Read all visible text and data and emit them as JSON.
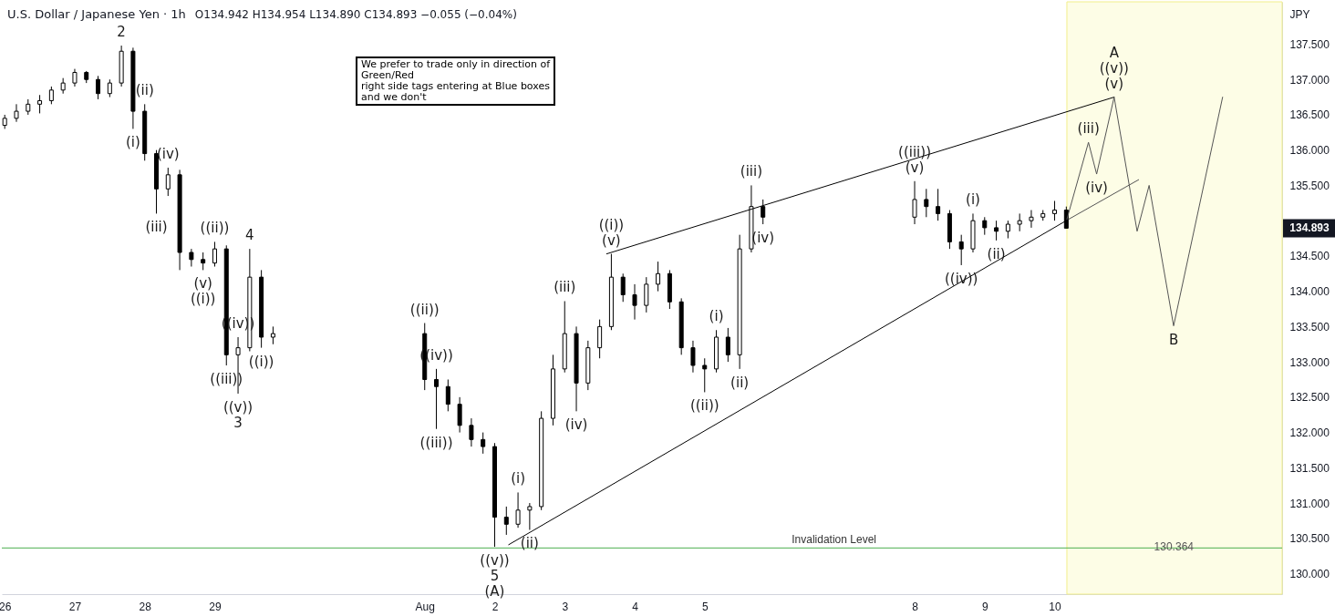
{
  "chart_data": {
    "type": "candlestick",
    "title": "U.S. Dollar / Japanese Yen · 1h",
    "subtitle": "O134.942 H134.954 L134.890 C134.893 −0.055 (−0.04%)",
    "ylabel": "JPY",
    "x": [
      "--07-26T00:00",
      "--07-26T04:00",
      "--07-26T08:00",
      "--07-26T12:00",
      "--07-26T16:00",
      "--07-26T20:00",
      "--07-27T00:00",
      "--07-27T04:00",
      "--07-27T08:00",
      "--07-27T12:00",
      "--07-27T16:00",
      "--07-27T20:00",
      "--07-28T00:00",
      "--07-28T04:00",
      "--07-28T08:00",
      "--07-28T12:00",
      "--07-28T16:00",
      "--07-28T20:00",
      "--07-29T00:00",
      "--07-29T04:00",
      "--07-29T08:00",
      "--07-29T12:00",
      "--07-29T16:00",
      "--07-29T20:00",
      "--08-01T00:00",
      "--08-01T04:00",
      "--08-01T08:00",
      "--08-01T12:00",
      "--08-01T16:00",
      "--08-01T20:00",
      "--08-02T00:00",
      "--08-02T04:00",
      "--08-02T08:00",
      "--08-02T12:00",
      "--08-02T16:00",
      "--08-02T20:00",
      "--08-03T00:00",
      "--08-03T04:00",
      "--08-03T08:00",
      "--08-03T12:00",
      "--08-03T16:00",
      "--08-03T20:00",
      "--08-04T00:00",
      "--08-04T04:00",
      "--08-04T08:00",
      "--08-04T12:00",
      "--08-04T16:00",
      "--08-04T20:00",
      "--08-05T00:00",
      "--08-05T04:00",
      "--08-05T08:00",
      "--08-05T12:00",
      "--08-05T16:00",
      "--08-05T20:00",
      "--08-08T00:00",
      "--08-08T04:00",
      "--08-08T08:00",
      "--08-08T12:00",
      "--08-08T16:00",
      "--08-08T20:00",
      "--08-09T00:00",
      "--08-09T04:00",
      "--08-09T08:00",
      "--08-09T12:00",
      "--08-09T16:00",
      "--08-09T20:00",
      "--08-10T00:00",
      "--08-10T04:00"
    ],
    "ohlc": [
      [
        136.35,
        136.5,
        136.3,
        136.45
      ],
      [
        136.45,
        136.65,
        136.4,
        136.55
      ],
      [
        136.55,
        136.72,
        136.5,
        136.65
      ],
      [
        136.65,
        136.78,
        136.52,
        136.7
      ],
      [
        136.7,
        136.9,
        136.65,
        136.85
      ],
      [
        136.85,
        137.02,
        136.8,
        136.95
      ],
      [
        136.95,
        137.15,
        136.9,
        137.1
      ],
      [
        137.1,
        137.12,
        136.95,
        137.0
      ],
      [
        137.0,
        137.05,
        136.72,
        136.8
      ],
      [
        136.8,
        137.0,
        136.75,
        136.95
      ],
      [
        136.95,
        137.48,
        136.9,
        137.4
      ],
      [
        137.4,
        137.45,
        136.3,
        136.55
      ],
      [
        136.55,
        136.65,
        135.85,
        135.95
      ],
      [
        135.95,
        136.0,
        135.1,
        135.45
      ],
      [
        135.45,
        135.75,
        135.35,
        135.65
      ],
      [
        135.65,
        135.72,
        134.3,
        134.55
      ],
      [
        134.55,
        134.6,
        134.35,
        134.45
      ],
      [
        134.45,
        134.55,
        134.3,
        134.4
      ],
      [
        134.4,
        134.7,
        134.35,
        134.6
      ],
      [
        134.6,
        134.65,
        132.95,
        133.1
      ],
      [
        133.1,
        133.35,
        132.55,
        133.2
      ],
      [
        133.2,
        134.6,
        133.15,
        134.2
      ],
      [
        134.2,
        134.3,
        133.2,
        133.35
      ],
      [
        133.35,
        133.5,
        133.25,
        133.4
      ],
      [
        133.4,
        133.55,
        132.6,
        132.75
      ],
      [
        132.75,
        132.9,
        132.05,
        132.65
      ],
      [
        132.65,
        132.75,
        132.3,
        132.4
      ],
      [
        132.4,
        132.5,
        132.0,
        132.1
      ],
      [
        132.1,
        132.2,
        131.8,
        131.9
      ],
      [
        131.9,
        132.0,
        131.7,
        131.8
      ],
      [
        131.8,
        131.85,
        130.38,
        130.8
      ],
      [
        130.8,
        130.95,
        130.55,
        130.7
      ],
      [
        130.7,
        131.15,
        130.65,
        130.9
      ],
      [
        130.9,
        131.0,
        130.62,
        130.95
      ],
      [
        130.95,
        132.3,
        130.9,
        132.2
      ],
      [
        132.2,
        133.1,
        132.1,
        132.9
      ],
      [
        132.9,
        133.86,
        132.85,
        133.4
      ],
      [
        133.4,
        133.5,
        132.3,
        132.7
      ],
      [
        132.7,
        133.3,
        132.6,
        133.2
      ],
      [
        133.2,
        133.6,
        133.05,
        133.5
      ],
      [
        133.5,
        134.53,
        133.45,
        134.2
      ],
      [
        134.2,
        134.25,
        133.85,
        133.95
      ],
      [
        133.95,
        134.1,
        133.6,
        133.8
      ],
      [
        133.8,
        134.2,
        133.7,
        134.1
      ],
      [
        134.1,
        134.42,
        134.0,
        134.25
      ],
      [
        134.25,
        134.3,
        133.75,
        133.85
      ],
      [
        133.85,
        133.9,
        133.1,
        133.2
      ],
      [
        133.2,
        133.3,
        132.85,
        132.95
      ],
      [
        132.95,
        133.05,
        132.57,
        132.9
      ],
      [
        132.9,
        133.45,
        132.85,
        133.35
      ],
      [
        133.35,
        133.48,
        133.0,
        133.1
      ],
      [
        133.1,
        134.8,
        132.9,
        134.6
      ],
      [
        134.6,
        135.5,
        134.55,
        135.2
      ],
      [
        135.2,
        135.3,
        134.95,
        135.05
      ],
      [
        135.05,
        135.56,
        134.95,
        135.3
      ],
      [
        135.3,
        135.45,
        135.05,
        135.2
      ],
      [
        135.2,
        135.45,
        135.0,
        135.1
      ],
      [
        135.1,
        135.15,
        134.6,
        134.7
      ],
      [
        134.7,
        134.8,
        134.37,
        134.6
      ],
      [
        134.6,
        135.1,
        134.55,
        135.0
      ],
      [
        135.0,
        135.05,
        134.8,
        134.9
      ],
      [
        134.9,
        135.0,
        134.72,
        134.85
      ],
      [
        134.85,
        135.0,
        134.75,
        134.95
      ],
      [
        134.95,
        135.1,
        134.85,
        135.0
      ],
      [
        135.0,
        135.15,
        134.9,
        135.05
      ],
      [
        135.05,
        135.15,
        135.0,
        135.1
      ],
      [
        135.1,
        135.28,
        135.0,
        135.15
      ],
      [
        135.15,
        135.2,
        134.89,
        134.893
      ]
    ],
    "series": [
      {
        "type": "line",
        "color": "#000000",
        "x": [
          "--08-03T14:24",
          "--08-10T20:24"
        ],
        "values": [
          134.53,
          136.75
        ]
      },
      {
        "type": "line",
        "color": "#000000",
        "x": [
          "--08-02T04:48",
          "--08-10T04:48"
        ],
        "values": [
          130.41,
          135.02
        ]
      },
      {
        "type": "line",
        "color": "#555555",
        "x": [
          "--08-10T04:48",
          "--08-11T04:48"
        ],
        "values": [
          135.02,
          135.58
        ]
      },
      {
        "type": "line",
        "color": "#555555",
        "x": [
          "--08-10T04:12",
          "--08-10T11:36",
          "--08-10T14:24",
          "--08-10T20:24",
          "--08-11T04:17",
          "--08-11T08:24",
          "--08-11T16:48",
          "--08-12T09:36"
        ],
        "values": [
          135.02,
          136.11,
          135.66,
          136.75,
          134.85,
          135.5,
          133.51,
          136.75
        ]
      }
    ],
    "xlim": [
      "--07-25T23:00",
      "--08-13T06:00"
    ],
    "xticks": [
      {
        "value": "--07-26",
        "label": "26"
      },
      {
        "value": "--07-27",
        "label": "27"
      },
      {
        "value": "--07-28",
        "label": "28"
      },
      {
        "value": "--07-29",
        "label": "29"
      },
      {
        "value": "--08-01",
        "label": "Aug"
      },
      {
        "value": "--08-02",
        "label": "2"
      },
      {
        "value": "--08-03",
        "label": "3"
      },
      {
        "value": "--08-04",
        "label": "4"
      },
      {
        "value": "--08-05",
        "label": "5"
      },
      {
        "value": "--08-08",
        "label": "8"
      },
      {
        "value": "--08-09",
        "label": "9"
      },
      {
        "value": "--08-10",
        "label": "10"
      }
    ],
    "ylim": [
      129.71,
      138.1
    ],
    "yticks": [
      {
        "value": 130,
        "label": "130.000"
      },
      {
        "value": 130.5,
        "label": "130.500"
      },
      {
        "value": 131,
        "label": "131.000"
      },
      {
        "value": 131.5,
        "label": "131.500"
      },
      {
        "value": 132,
        "label": "132.000"
      },
      {
        "value": 132.5,
        "label": "132.500"
      },
      {
        "value": 133,
        "label": "133.000"
      },
      {
        "value": 133.5,
        "label": "133.500"
      },
      {
        "value": 134,
        "label": "134.000"
      },
      {
        "value": 134.5,
        "label": "134.500"
      },
      {
        "value": 135.5,
        "label": "135.500"
      },
      {
        "value": 136,
        "label": "136.000"
      },
      {
        "value": 136.5,
        "label": "136.500"
      },
      {
        "value": 137,
        "label": "137.000"
      },
      {
        "value": 137.5,
        "label": "137.500"
      }
    ],
    "ref_lines": [
      {
        "axis": "y",
        "value": 130.364,
        "label": "Invalidation Level",
        "color": "#4caf50"
      }
    ],
    "bands": [
      {
        "axis": "x",
        "from": "--08-10T04:12",
        "to": "--08-13T06:00",
        "color": "#fdfde6"
      }
    ],
    "annotations": [
      "We prefer to trade only in direction of\nGreen/Red\nright side tags entering at Blue boxes\nand we don't",
      "134.893",
      "130.364",
      {
        "text": "2",
        "x": "--07-27T16:00",
        "y": 137.48
      },
      {
        "text": "(i)",
        "x": "--07-27T20:00",
        "y": 136.3
      },
      {
        "text": "(ii)",
        "x": "--07-28T00:00",
        "y": 136.65
      },
      {
        "text": "(iii)",
        "x": "--07-28T04:00",
        "y": 135.1
      },
      {
        "text": "(iv)",
        "x": "--07-28T08:00",
        "y": 135.75
      },
      {
        "text": "(v)",
        "x": "--07-28T20:00",
        "y": 134.3
      },
      {
        "text": "((i))",
        "x": "--07-28T20:00",
        "y": 134.3
      },
      {
        "text": "((ii))",
        "x": "--07-29T00:00",
        "y": 134.7
      },
      {
        "text": "((iii))",
        "x": "--07-29T04:00",
        "y": 132.95
      },
      {
        "text": "((iv))",
        "x": "--07-29T08:00",
        "y": 133.35
      },
      {
        "text": "((v))",
        "x": "--07-29T08:00",
        "y": 132.55
      },
      {
        "text": "3",
        "x": "--07-29T08:00",
        "y": 132.55
      },
      {
        "text": "4",
        "x": "--07-29T12:00",
        "y": 134.6
      },
      {
        "text": "((i))",
        "x": "--07-29T16:00",
        "y": 133.2
      },
      {
        "text": "((ii))",
        "x": "--08-01T00:00",
        "y": 133.55
      },
      {
        "text": "((iv))",
        "x": "--08-01T04:00",
        "y": 132.9
      },
      {
        "text": "((iii))",
        "x": "--08-01T04:00",
        "y": 132.05
      },
      {
        "text": "((v))",
        "x": "--08-02T00:00",
        "y": 130.38
      },
      {
        "text": "5",
        "x": "--08-02T00:00",
        "y": 130.38
      },
      {
        "text": "(A)",
        "x": "--08-02T00:00",
        "y": 130.38
      },
      {
        "text": "(i)",
        "x": "--08-02T08:00",
        "y": 131.15
      },
      {
        "text": "(ii)",
        "x": "--08-02T12:00",
        "y": 130.62
      },
      {
        "text": "(iii)",
        "x": "--08-03T00:00",
        "y": 133.86
      },
      {
        "text": "(iv)",
        "x": "--08-03T04:00",
        "y": 132.3
      },
      {
        "text": "((i))",
        "x": "--08-03T16:00",
        "y": 134.53
      },
      {
        "text": "(v)",
        "x": "--08-03T16:00",
        "y": 134.53
      },
      {
        "text": "((ii))",
        "x": "--08-05T00:00",
        "y": 132.57
      },
      {
        "text": "(i)",
        "x": "--08-05T04:00",
        "y": 133.45
      },
      {
        "text": "(ii)",
        "x": "--08-05T12:00",
        "y": 132.9
      },
      {
        "text": "(iii)",
        "x": "--08-05T16:00",
        "y": 135.5
      },
      {
        "text": "(iv)",
        "x": "--08-05T20:00",
        "y": 134.95
      },
      {
        "text": "((iii))",
        "x": "--08-08T00:00",
        "y": 135.56
      },
      {
        "text": "(v)",
        "x": "--08-08T00:00",
        "y": 135.56
      },
      {
        "text": "((iv))",
        "x": "--08-08T16:00",
        "y": 134.37
      },
      {
        "text": "(i)",
        "x": "--08-08T20:00",
        "y": 135.1
      },
      {
        "text": "(ii)",
        "x": "--08-09T04:00",
        "y": 134.72
      },
      {
        "text": "(iii)",
        "x": "--08-10T11:36",
        "y": 136.11
      },
      {
        "text": "(iv)",
        "x": "--08-10T14:24",
        "y": 135.66
      },
      {
        "text": "A",
        "x": "--08-10T20:24",
        "y": 136.75
      },
      {
        "text": "((v))",
        "x": "--08-10T20:24",
        "y": 136.75
      },
      {
        "text": "(v)",
        "x": "--08-10T20:24",
        "y": 136.75
      },
      {
        "text": "B",
        "x": "--08-11T16:48",
        "y": 133.51
      }
    ]
  }
}
